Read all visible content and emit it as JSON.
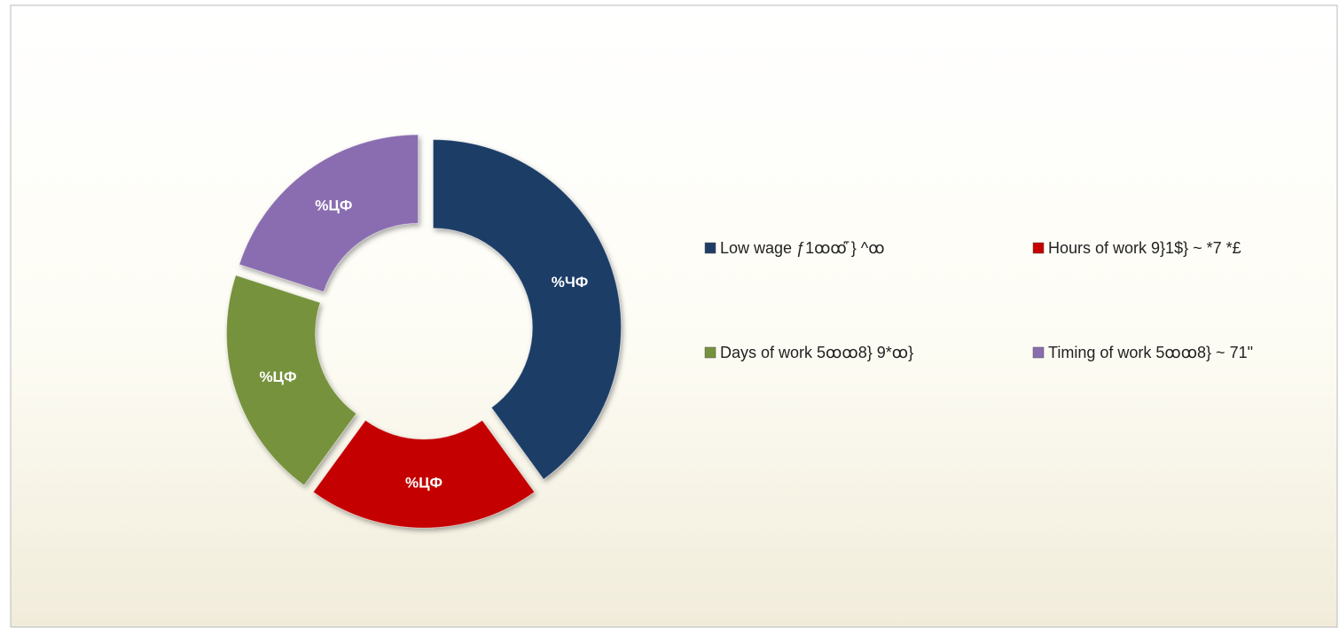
{
  "chart_data": {
    "type": "donut",
    "categories": [
      "Low wage ƒ1ꝏꝏ꜠ } ^ꝏ",
      "Hours of work 9}1$} ~ *7 *£",
      "Days of work 5ꝏꝏ8} 9*ꝏ}",
      "Timing of work 5ꝏꝏ8} ~ 71\""
    ],
    "values": [
      40,
      20,
      20,
      20
    ],
    "value_labels": [
      "%ЧФ",
      "%ЦФ",
      "%ЦФ",
      "%ЦФ"
    ],
    "colors": [
      "#1f3d66",
      "#c40000",
      "#76923c",
      "#8a6db0"
    ],
    "legend": "right"
  }
}
